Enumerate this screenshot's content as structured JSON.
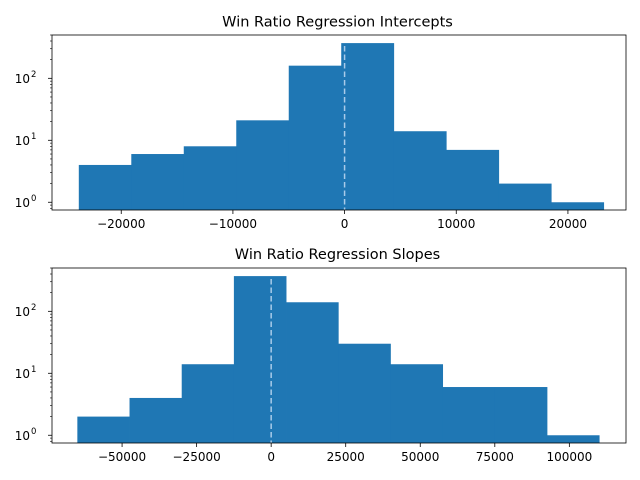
{
  "colors": {
    "bar": "#1f77b4",
    "zero_line": "#a9cbe9",
    "axis": "#000000",
    "background": "#ffffff"
  },
  "chart_data": [
    {
      "type": "bar",
      "subtype": "histogram",
      "title": "Win Ratio Regression Intercepts",
      "xlabel": "",
      "ylabel": "",
      "y_scale": "log",
      "xlim": [
        -26200,
        25200
      ],
      "ylim": [
        0.75,
        500
      ],
      "bin_edges": [
        -23800,
        -19100,
        -14400,
        -9700,
        -5000,
        -300,
        4400,
        9100,
        13800,
        18500,
        23200
      ],
      "counts": [
        4,
        6,
        8,
        21,
        160,
        370,
        14,
        7,
        2,
        1
      ],
      "reference_line": {
        "x": 0,
        "style": "dashed"
      },
      "x_ticks": [
        {
          "value": -20000,
          "label": "−20000"
        },
        {
          "value": -10000,
          "label": "−10000"
        },
        {
          "value": 0,
          "label": "0"
        },
        {
          "value": 10000,
          "label": "10000"
        },
        {
          "value": 20000,
          "label": "20000"
        }
      ],
      "y_ticks": [
        {
          "value": 1,
          "base": "10",
          "exp": "0"
        },
        {
          "value": 10,
          "base": "10",
          "exp": "1"
        },
        {
          "value": 100,
          "base": "10",
          "exp": "2"
        }
      ],
      "grid": false,
      "legend": "none"
    },
    {
      "type": "bar",
      "subtype": "histogram",
      "title": "Win Ratio Regression Slopes",
      "xlabel": "",
      "ylabel": "",
      "y_scale": "log",
      "xlim": [
        -73500,
        119000
      ],
      "ylim": [
        0.75,
        500
      ],
      "bin_edges": [
        -65000,
        -47500,
        -30000,
        -12500,
        5000,
        22500,
        40000,
        57500,
        75000,
        92500,
        110000
      ],
      "counts": [
        2,
        4,
        14,
        370,
        140,
        30,
        14,
        6,
        6,
        1
      ],
      "reference_line": {
        "x": 0,
        "style": "dashed"
      },
      "x_ticks": [
        {
          "value": -50000,
          "label": "−50000"
        },
        {
          "value": -25000,
          "label": "−25000"
        },
        {
          "value": 0,
          "label": "0"
        },
        {
          "value": 25000,
          "label": "25000"
        },
        {
          "value": 50000,
          "label": "50000"
        },
        {
          "value": 75000,
          "label": "75000"
        },
        {
          "value": 100000,
          "label": "100000"
        }
      ],
      "y_ticks": [
        {
          "value": 1,
          "base": "10",
          "exp": "0"
        },
        {
          "value": 10,
          "base": "10",
          "exp": "1"
        },
        {
          "value": 100,
          "base": "10",
          "exp": "2"
        }
      ],
      "grid": false,
      "legend": "none"
    }
  ]
}
